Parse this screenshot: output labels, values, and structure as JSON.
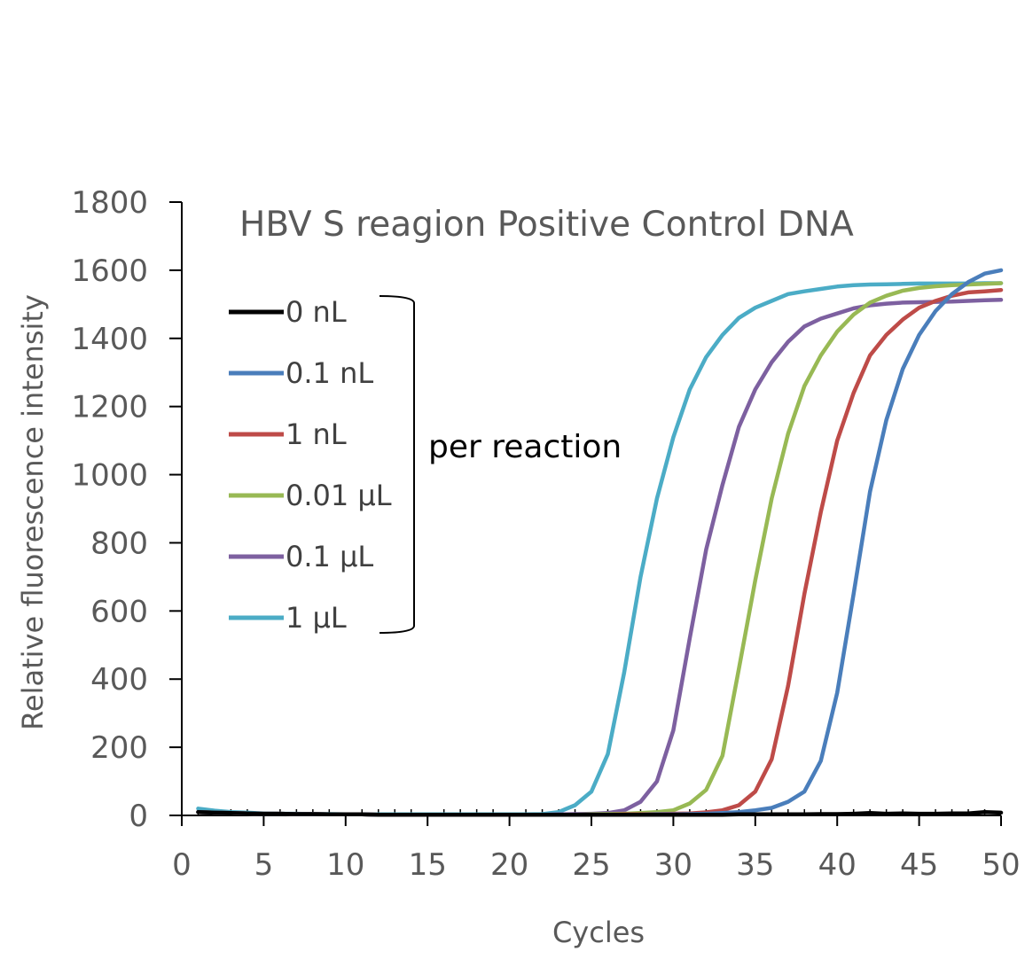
{
  "chart_data": {
    "type": "line",
    "title": "HBV S reagion Positive Control DNA",
    "xlabel": "Cycles",
    "ylabel": "Relative fluorescence intensity",
    "xlim": [
      0,
      50
    ],
    "ylim": [
      0,
      1800
    ],
    "x_ticks": [
      0,
      5,
      10,
      15,
      20,
      25,
      30,
      35,
      40,
      45,
      50
    ],
    "y_ticks": [
      0,
      200,
      400,
      600,
      800,
      1000,
      1200,
      1400,
      1600,
      1800
    ],
    "grid": false,
    "legend_position": "upper-left",
    "annotation": "per reaction",
    "x": [
      1,
      2,
      3,
      4,
      5,
      6,
      7,
      8,
      9,
      10,
      11,
      12,
      13,
      14,
      15,
      16,
      17,
      18,
      19,
      20,
      21,
      22,
      23,
      24,
      25,
      26,
      27,
      28,
      29,
      30,
      31,
      32,
      33,
      34,
      35,
      36,
      37,
      38,
      39,
      40,
      41,
      42,
      43,
      44,
      45,
      46,
      47,
      48,
      49,
      50
    ],
    "series": [
      {
        "name": "0 nL",
        "color": "#000000",
        "values": [
          10,
          8,
          7,
          6,
          5,
          5,
          4,
          4,
          3,
          3,
          3,
          2,
          2,
          2,
          2,
          2,
          2,
          2,
          2,
          2,
          2,
          2,
          2,
          2,
          2,
          2,
          2,
          2,
          2,
          2,
          2,
          2,
          2,
          3,
          3,
          3,
          3,
          3,
          4,
          4,
          5,
          7,
          5,
          6,
          5,
          5,
          6,
          6,
          10,
          8
        ]
      },
      {
        "name": "0.1 nL",
        "color": "#4a7ebb",
        "values": [
          10,
          8,
          7,
          6,
          5,
          5,
          4,
          4,
          3,
          3,
          3,
          2,
          2,
          2,
          2,
          2,
          2,
          2,
          2,
          2,
          2,
          2,
          2,
          2,
          2,
          2,
          2,
          2,
          3,
          3,
          4,
          5,
          7,
          10,
          15,
          22,
          40,
          70,
          160,
          360,
          650,
          950,
          1160,
          1310,
          1410,
          1480,
          1530,
          1565,
          1590,
          1600
        ]
      },
      {
        "name": "1 nL",
        "color": "#be4b48",
        "values": [
          10,
          8,
          7,
          6,
          5,
          5,
          4,
          4,
          3,
          3,
          3,
          2,
          2,
          2,
          2,
          2,
          2,
          2,
          2,
          2,
          2,
          2,
          2,
          2,
          2,
          2,
          3,
          3,
          4,
          5,
          6,
          9,
          15,
          30,
          70,
          165,
          380,
          650,
          890,
          1100,
          1240,
          1350,
          1410,
          1455,
          1490,
          1510,
          1525,
          1535,
          1538,
          1542
        ]
      },
      {
        "name": "0.01 μL",
        "color": "#98b954",
        "values": [
          10,
          8,
          7,
          6,
          5,
          5,
          4,
          4,
          3,
          3,
          3,
          2,
          2,
          2,
          2,
          2,
          2,
          2,
          2,
          2,
          2,
          2,
          2,
          2,
          3,
          4,
          5,
          7,
          10,
          15,
          35,
          75,
          175,
          430,
          690,
          930,
          1120,
          1260,
          1350,
          1420,
          1470,
          1505,
          1525,
          1540,
          1548,
          1553,
          1556,
          1558,
          1560,
          1562
        ]
      },
      {
        "name": "0.1 μL",
        "color": "#7d60a0",
        "values": [
          10,
          8,
          7,
          6,
          5,
          5,
          4,
          4,
          3,
          3,
          3,
          2,
          2,
          2,
          2,
          2,
          2,
          2,
          2,
          2,
          2,
          2,
          3,
          4,
          5,
          7,
          15,
          40,
          100,
          250,
          520,
          780,
          970,
          1140,
          1250,
          1330,
          1390,
          1435,
          1458,
          1473,
          1488,
          1497,
          1502,
          1505,
          1506,
          1507,
          1508,
          1510,
          1512,
          1513
        ]
      },
      {
        "name": "1 μL",
        "color": "#4bacc6",
        "values": [
          20,
          14,
          10,
          8,
          6,
          5,
          5,
          4,
          4,
          3,
          3,
          3,
          3,
          3,
          3,
          3,
          3,
          3,
          3,
          3,
          3,
          4,
          10,
          30,
          70,
          180,
          420,
          700,
          930,
          1110,
          1250,
          1345,
          1410,
          1460,
          1490,
          1510,
          1530,
          1538,
          1545,
          1552,
          1556,
          1558,
          1559,
          1560,
          1561,
          1561,
          1561,
          1561,
          1562,
          1562
        ]
      }
    ]
  }
}
